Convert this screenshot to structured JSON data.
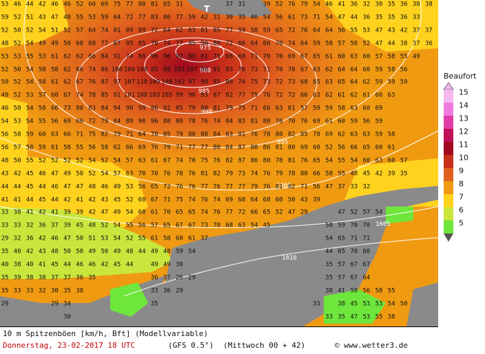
{
  "footer": {
    "title": "10 m Spitzenböen [km/h, Bft] (Modellvariable)",
    "date": "Donnerstag, 23-02-2017  18 UTC",
    "model": "(GFS 0.5°)",
    "run": "(Mittwoch 00 + 42)",
    "credit": "© www.wetter3.de"
  },
  "legend": {
    "title": "Beaufort",
    "levels": [
      {
        "label": "15",
        "color": "#f5b8f0"
      },
      {
        "label": "14",
        "color": "#f07be0"
      },
      {
        "label": "13",
        "color": "#e03ca8"
      },
      {
        "label": "12",
        "color": "#c0105a"
      },
      {
        "label": "11",
        "color": "#a00a1e"
      },
      {
        "label": "10",
        "color": "#c8301a"
      },
      {
        "label": "9",
        "color": "#e0601e"
      },
      {
        "label": "8",
        "color": "#f09a12"
      },
      {
        "label": "7",
        "color": "#ffd21e"
      },
      {
        "label": "6",
        "color": "#c8e63c"
      },
      {
        "label": "5",
        "color": "#6ee63c"
      }
    ]
  },
  "map": {
    "pressure_center": "T",
    "isobars": [
      "975",
      "980",
      "985",
      "990",
      "995",
      "1000",
      "1005",
      "1010"
    ],
    "grid_rows": [
      "53 46 44 42 46 46 52 60 69 75 77 80 81 65 31 . . . 37 31 . 39 52 76 79 54 46 41 36 32 30 35 36 38 38 37",
      "59 52 51 43 47 48 55 53 59 64 72 77 83 86 77 59 42 31 30 35 46 54 56 61 73 71 54 47 44 36 35 35 36 33 . .",
      "52 50 52 54 51 52 57 64 74 81 89 89 72 64 62 63 81 85 77 59 58 59 65 72 76 64 64 56 55 53 47 43 42 37 37 .",
      "48 52 54 49 49 58 60 68 77 87 95 85 70 74 77 85 90 80 72 66 64 66 70 74 64 59 58 57 58 52 47 44 38 37 36 .",
      "53 53 55 53 61 62 62 66 84 91 74 88 96 96 92 88 81 75 68 68 71 70 70 69 67 65 61 60 63 60 57 58 55 49 .",
      "52 50 54 58 58 62 66 74 86 100 106 100 85 88 101 107 96 91 83 76 73 71 70 70 67 63 62 64 64 60 59 58 56 .",
      "50 52 54 58 61 62 67 76 87 97 107 110 109 108 102 97 90 85 80 74 75 73 72 73 68 65 63 65 64 62 59 59 59 .",
      "49 52 53 57 60 67 74 78 85 91 101 108 103 105 99 96 93 87 82 77 75 76 72 72 66 63 62 61 62 61 60 63 .",
      "46 50 54 58 66 73 80 83 84 94 98 98 96 91 85 79 80 81 79 75 71 66 63 61 57 59 59 58 63 60 69 .",
      "54 53 54 55 56 69 66 72 79 84 89 90 96 88 80 78 76 74 84 83 81 88 76 70 76 69 61 60 59 56 59 .",
      "56 58 59 60 63 66 71 75 82 79 71 64 70 85 79 80 80 84 83 81 76 78 80 82 85 78 69 62 63 63 59 58 .",
      "56 57 58 59 61 58 55 56 58 62 66 69 76 79 71 77 77 80 84 87 80 86 81 80 69 60 52 56 66 65 60 61 .",
      "48 50 55 52 52 52 52 54 52 54 57 63 61 67 74 70 75 76 82 87 86 80 78 81 76 65 54 55 54 60 63 60 57 .",
      "43 42 45 46 47 49 50 52 54 57 63 70 70 76 78 76 81 82 79 73 74 76 79 78 80 66 58 55 48 45 42 39 35 .",
      "44 44 45 44 46 47 47 48 46 49 53 56 65 72 76 76 77 76 77 77 79 76 81 82 71 56 47 37 33 32 .",
      "41 41 44 45 44 42 41 42 43 45 52 60 67 71 75 74 76 74 69 68 64 68 60 50 43 39 .",
      "33 38 41 42 41 39 39 42 47 49 54 60 61 70 65 65 74 76 77 72 66 65 52 47 29 . . 47 52 57 54 .",
      "33 33 32 36 37 39 45 48 52 54 55 56 57 65 67 67 73 70 68 63 54 45 . . . . 58 59 70 70 .",
      "29 32 36 42 46 47 50 51 53 54 52 55 61 58 60 61 37 . . . . . . . . . 54 65 71 71 .",
      "35 40 42 43 48 50 50 49 50 49 48 44 49 48 59 54 . . . . . . . . . . 44 65 70 68 .",
      "40 38 40 41 45 44 46 46 42 45 44 . 49 49 30 . . . . . . . . . . . 35 57 67 67 .",
      "35 39 38 38 37 37 36 35 . . . . 36 37 26 29 . . . . . . . . . . 35 57 67 64 .",
      "35 33 33 32 30 35 38 . . . . . 33 36 29 . . . . . . . . . . . 38 41 50 56 58 55 .",
      "29 . . . 29 34 . . . . . . 35 . . . . . . . . . . . . 33 . 38 45 53 53 54 50 .",
      ". . . . . 30 . . . . . . . . . . . . . . . . . . . . 33 35 47 53 55 38 .",
      ". . . . . . . . . . . . . . . . . . . . . . . . . 29 41 39 41 45 48 39 29 30 ."
    ]
  }
}
